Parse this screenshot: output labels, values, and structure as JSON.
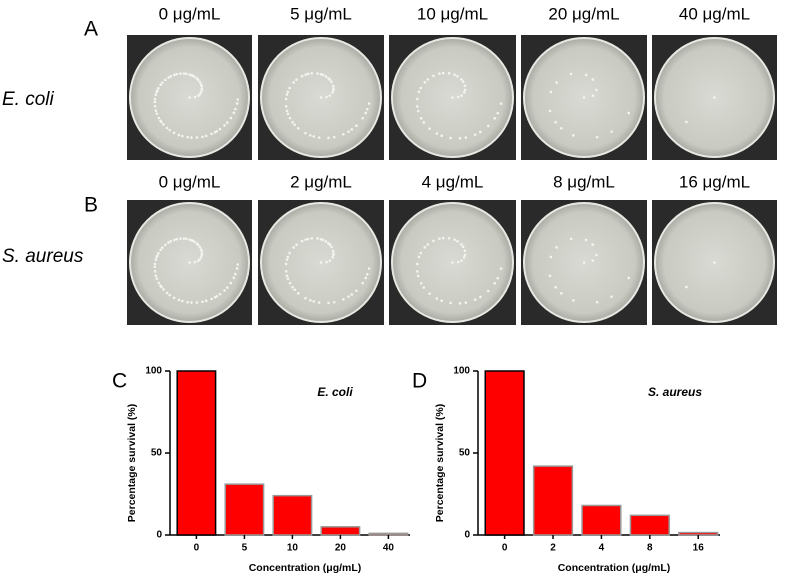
{
  "plates": [
    {
      "label": "A",
      "organism": "E. coli",
      "concentrations": [
        "0 μg/mL",
        "5 μg/mL",
        "10 μg/mL",
        "20 μg/mL",
        "40 μg/mL"
      ]
    },
    {
      "label": "B",
      "organism": "S. aureus",
      "concentrations": [
        "0 μg/mL",
        "2 μg/mL",
        "4 μg/mL",
        "8 μg/mL",
        "16 μg/mL"
      ]
    }
  ],
  "chart_data": [
    {
      "type": "bar",
      "panel": "C",
      "annotation": "E. coli",
      "categories": [
        "0",
        "5",
        "10",
        "20",
        "40"
      ],
      "values": [
        100,
        31,
        24,
        5,
        1
      ],
      "color": "#ff0000",
      "ylim": [
        0,
        100
      ],
      "yticks": [
        0,
        50,
        100
      ],
      "xlabel": "Concentration (μg/mL)",
      "ylabel": "Percentage survival (%)"
    },
    {
      "type": "bar",
      "panel": "D",
      "annotation": "S. aureus",
      "categories": [
        "0",
        "2",
        "4",
        "8",
        "16"
      ],
      "values": [
        100,
        42,
        18,
        12,
        1.5
      ],
      "color": "#ff0000",
      "ylim": [
        0,
        100
      ],
      "yticks": [
        0,
        50,
        100
      ],
      "xlabel": "Concentration (μg/mL)",
      "ylabel": "Percentage survival (%)"
    }
  ]
}
